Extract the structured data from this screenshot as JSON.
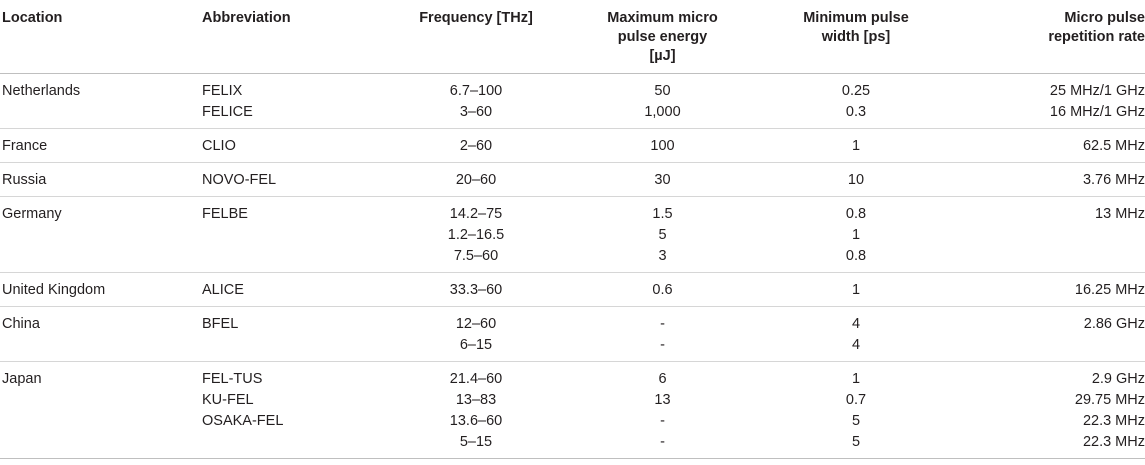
{
  "headers": {
    "location": "Location",
    "abbreviation": "Abbreviation",
    "frequency": "Frequency [THz]",
    "energy": [
      "Maximum micro",
      "pulse energy",
      "[µJ]"
    ],
    "pulse_width": [
      "Minimum pulse",
      "width [ps]"
    ],
    "rep_rate": [
      "Micro pulse",
      "repetition rate"
    ]
  },
  "rows": [
    {
      "location": "Netherlands",
      "abbreviation": [
        "FELIX",
        "FELICE"
      ],
      "frequency": [
        "6.7–100",
        "3–60"
      ],
      "energy": [
        "50",
        "1,000"
      ],
      "pulse_width": [
        "0.25",
        "0.3"
      ],
      "rep_rate": [
        "25 MHz/1 GHz",
        "16 MHz/1 GHz"
      ]
    },
    {
      "location": "France",
      "abbreviation": [
        "CLIO"
      ],
      "frequency": [
        "2–60"
      ],
      "energy": [
        "100"
      ],
      "pulse_width": [
        "1"
      ],
      "rep_rate": [
        "62.5 MHz"
      ]
    },
    {
      "location": "Russia",
      "abbreviation": [
        "NOVO-FEL"
      ],
      "frequency": [
        "20–60"
      ],
      "energy": [
        "30"
      ],
      "pulse_width": [
        "10"
      ],
      "rep_rate": [
        "3.76 MHz"
      ]
    },
    {
      "location": "Germany",
      "abbreviation": [
        "FELBE"
      ],
      "frequency": [
        "14.2–75",
        "1.2–16.5",
        "7.5–60"
      ],
      "energy": [
        "1.5",
        "5",
        "3"
      ],
      "pulse_width": [
        "0.8",
        "1",
        "0.8"
      ],
      "rep_rate": [
        "13 MHz"
      ]
    },
    {
      "location": "United Kingdom",
      "abbreviation": [
        "ALICE"
      ],
      "frequency": [
        "33.3–60"
      ],
      "energy": [
        "0.6"
      ],
      "pulse_width": [
        "1"
      ],
      "rep_rate": [
        "16.25 MHz"
      ]
    },
    {
      "location": "China",
      "abbreviation": [
        "BFEL"
      ],
      "frequency": [
        "12–60",
        "6–15"
      ],
      "energy": [
        "-",
        "-"
      ],
      "pulse_width": [
        "4",
        "4"
      ],
      "rep_rate": [
        "2.86 GHz"
      ]
    },
    {
      "location": "Japan",
      "abbreviation": [
        "FEL-TUS",
        "KU-FEL",
        "OSAKA-FEL",
        ""
      ],
      "frequency": [
        "21.4–60",
        "13–83",
        "13.6–60",
        "5–15"
      ],
      "energy": [
        "6",
        "13",
        "-",
        "-"
      ],
      "pulse_width": [
        "1",
        "0.7",
        "5",
        "5"
      ],
      "rep_rate": [
        "2.9 GHz",
        "29.75 MHz",
        "22.3 MHz",
        "22.3 MHz"
      ]
    }
  ]
}
